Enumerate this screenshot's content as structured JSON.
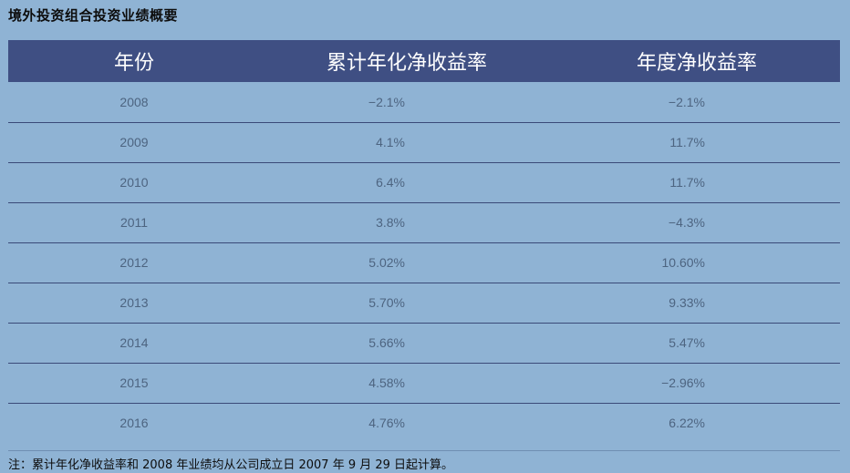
{
  "title": "境外投资组合投资业绩概要",
  "table": {
    "headers": [
      "年份",
      "累计年化净收益率",
      "年度净收益率"
    ],
    "rows": [
      {
        "year": "2008",
        "cumulative": "−2.1%",
        "annual": "−2.1%"
      },
      {
        "year": "2009",
        "cumulative": "4.1%",
        "annual": "11.7%"
      },
      {
        "year": "2010",
        "cumulative": "6.4%",
        "annual": "11.7%"
      },
      {
        "year": "2011",
        "cumulative": "3.8%",
        "annual": "−4.3%"
      },
      {
        "year": "2012",
        "cumulative": "5.02%",
        "annual": "10.60%"
      },
      {
        "year": "2013",
        "cumulative": "5.70%",
        "annual": "9.33%"
      },
      {
        "year": "2014",
        "cumulative": "5.66%",
        "annual": "5.47%"
      },
      {
        "year": "2015",
        "cumulative": "4.58%",
        "annual": "−2.96%"
      },
      {
        "year": "2016",
        "cumulative": "4.76%",
        "annual": "6.22%"
      }
    ]
  },
  "footnote": "注：累计年化净收益率和 2008 年业绩均从公司成立日 2007 年 9 月 29 日起计算。",
  "colors": {
    "background": "#8fb3d4",
    "header_bg": "#3f4f83",
    "header_text": "#ffffff",
    "cell_text": "#4d6480",
    "row_divider": "#3a4a78"
  }
}
